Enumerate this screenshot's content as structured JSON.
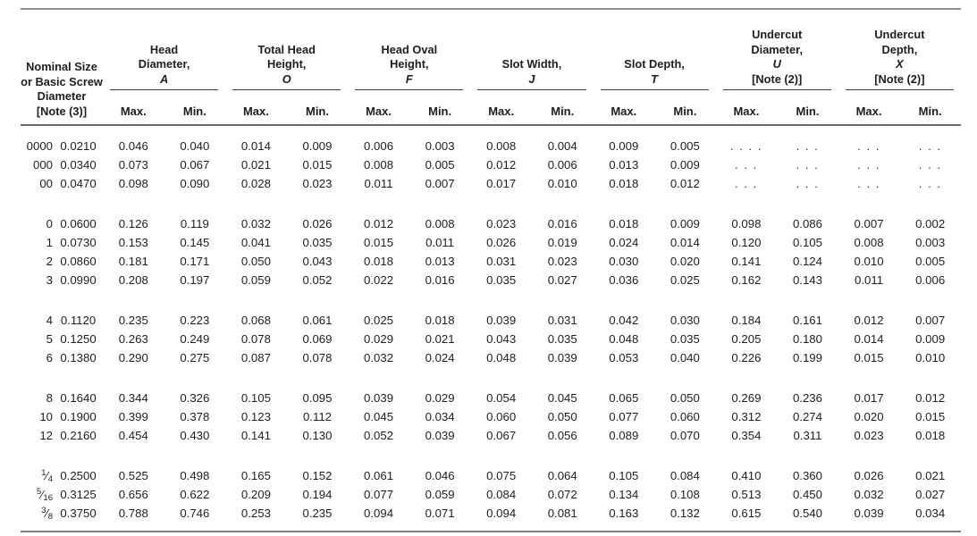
{
  "table": {
    "nominal_header": {
      "lines": [
        "Nominal Size",
        "or Basic Screw",
        "Diameter",
        "[Note (3)]"
      ]
    },
    "groups": [
      {
        "id": "head-diameter",
        "lines": [
          "Head",
          "Diameter,"
        ],
        "symbol": "A",
        "note": "",
        "subheaders": [
          "Max.",
          "Min."
        ]
      },
      {
        "id": "total-head-height",
        "lines": [
          "Total Head",
          "Height,"
        ],
        "symbol": "O",
        "note": "",
        "subheaders": [
          "Max.",
          "Min."
        ]
      },
      {
        "id": "head-oval-height",
        "lines": [
          "Head Oval",
          "Height,"
        ],
        "symbol": "F",
        "note": "",
        "subheaders": [
          "Max.",
          "Min."
        ]
      },
      {
        "id": "slot-width",
        "lines": [
          "Slot Width,"
        ],
        "symbol": "J",
        "note": "",
        "subheaders": [
          "Max.",
          "Min."
        ]
      },
      {
        "id": "slot-depth",
        "lines": [
          "Slot Depth,"
        ],
        "symbol": "T",
        "note": "",
        "subheaders": [
          "Max.",
          "Min."
        ]
      },
      {
        "id": "undercut-diameter",
        "lines": [
          "Undercut",
          "Diameter,"
        ],
        "symbol": "U",
        "note": "[Note (2)]",
        "subheaders": [
          "Max.",
          "Min."
        ]
      },
      {
        "id": "undercut-depth",
        "lines": [
          "Undercut",
          "Depth,"
        ],
        "symbol": "X",
        "note": "[Note (2)]",
        "subheaders": [
          "Max.",
          "Min."
        ]
      }
    ],
    "row_groups": [
      {
        "rows": [
          {
            "size": "0000",
            "diameter": "0.0210",
            "values": [
              "0.046",
              "0.040",
              "0.014",
              "0.009",
              "0.006",
              "0.003",
              "0.008",
              "0.004",
              "0.009",
              "0.005",
              ". . . .",
              ". . .",
              ". . .",
              ". . ."
            ]
          },
          {
            "size": "000",
            "diameter": "0.0340",
            "values": [
              "0.073",
              "0.067",
              "0.021",
              "0.015",
              "0.008",
              "0.005",
              "0.012",
              "0.006",
              "0.013",
              "0.009",
              ". . .",
              ". . .",
              ". . .",
              ". . ."
            ]
          },
          {
            "size": "00",
            "diameter": "0.0470",
            "values": [
              "0.098",
              "0.090",
              "0.028",
              "0.023",
              "0.011",
              "0.007",
              "0.017",
              "0.010",
              "0.018",
              "0.012",
              ". . .",
              ". . .",
              ". . .",
              ". . ."
            ]
          }
        ]
      },
      {
        "rows": [
          {
            "size": "0",
            "diameter": "0.0600",
            "values": [
              "0.126",
              "0.119",
              "0.032",
              "0.026",
              "0.012",
              "0.008",
              "0.023",
              "0.016",
              "0.018",
              "0.009",
              "0.098",
              "0.086",
              "0.007",
              "0.002"
            ]
          },
          {
            "size": "1",
            "diameter": "0.0730",
            "values": [
              "0.153",
              "0.145",
              "0.041",
              "0.035",
              "0.015",
              "0.011",
              "0.026",
              "0.019",
              "0.024",
              "0.014",
              "0.120",
              "0.105",
              "0.008",
              "0.003"
            ]
          },
          {
            "size": "2",
            "diameter": "0.0860",
            "values": [
              "0.181",
              "0.171",
              "0.050",
              "0.043",
              "0.018",
              "0.013",
              "0.031",
              "0.023",
              "0.030",
              "0.020",
              "0.141",
              "0.124",
              "0.010",
              "0.005"
            ]
          },
          {
            "size": "3",
            "diameter": "0.0990",
            "values": [
              "0.208",
              "0.197",
              "0.059",
              "0.052",
              "0.022",
              "0.016",
              "0.035",
              "0.027",
              "0.036",
              "0.025",
              "0.162",
              "0.143",
              "0.011",
              "0.006"
            ]
          }
        ]
      },
      {
        "rows": [
          {
            "size": "4",
            "diameter": "0.1120",
            "values": [
              "0.235",
              "0.223",
              "0.068",
              "0.061",
              "0.025",
              "0.018",
              "0.039",
              "0.031",
              "0.042",
              "0.030",
              "0.184",
              "0.161",
              "0.012",
              "0.007"
            ]
          },
          {
            "size": "5",
            "diameter": "0.1250",
            "values": [
              "0.263",
              "0.249",
              "0.078",
              "0.069",
              "0.029",
              "0.021",
              "0.043",
              "0.035",
              "0.048",
              "0.035",
              "0.205",
              "0.180",
              "0.014",
              "0.009"
            ]
          },
          {
            "size": "6",
            "diameter": "0.1380",
            "values": [
              "0.290",
              "0.275",
              "0.087",
              "0.078",
              "0.032",
              "0.024",
              "0.048",
              "0.039",
              "0.053",
              "0.040",
              "0.226",
              "0.199",
              "0.015",
              "0.010"
            ]
          }
        ]
      },
      {
        "rows": [
          {
            "size": "8",
            "diameter": "0.1640",
            "values": [
              "0.344",
              "0.326",
              "0.105",
              "0.095",
              "0.039",
              "0.029",
              "0.054",
              "0.045",
              "0.065",
              "0.050",
              "0.269",
              "0.236",
              "0.017",
              "0.012"
            ]
          },
          {
            "size": "10",
            "diameter": "0.1900",
            "values": [
              "0.399",
              "0.378",
              "0.123",
              "0.112",
              "0.045",
              "0.034",
              "0.060",
              "0.050",
              "0.077",
              "0.060",
              "0.312",
              "0.274",
              "0.020",
              "0.015"
            ]
          },
          {
            "size": "12",
            "diameter": "0.2160",
            "values": [
              "0.454",
              "0.430",
              "0.141",
              "0.130",
              "0.052",
              "0.039",
              "0.067",
              "0.056",
              "0.089",
              "0.070",
              "0.354",
              "0.311",
              "0.023",
              "0.018"
            ]
          }
        ]
      },
      {
        "rows": [
          {
            "size": "1/4",
            "diameter": "0.2500",
            "values": [
              "0.525",
              "0.498",
              "0.165",
              "0.152",
              "0.061",
              "0.046",
              "0.075",
              "0.064",
              "0.105",
              "0.084",
              "0.410",
              "0.360",
              "0.026",
              "0.021"
            ]
          },
          {
            "size": "5/16",
            "diameter": "0.3125",
            "values": [
              "0.656",
              "0.622",
              "0.209",
              "0.194",
              "0.077",
              "0.059",
              "0.084",
              "0.072",
              "0.134",
              "0.108",
              "0.513",
              "0.450",
              "0.032",
              "0.027"
            ]
          },
          {
            "size": "3/8",
            "diameter": "0.3750",
            "values": [
              "0.788",
              "0.746",
              "0.253",
              "0.235",
              "0.094",
              "0.071",
              "0.094",
              "0.081",
              "0.163",
              "0.132",
              "0.615",
              "0.540",
              "0.039",
              "0.034"
            ]
          }
        ]
      }
    ]
  }
}
